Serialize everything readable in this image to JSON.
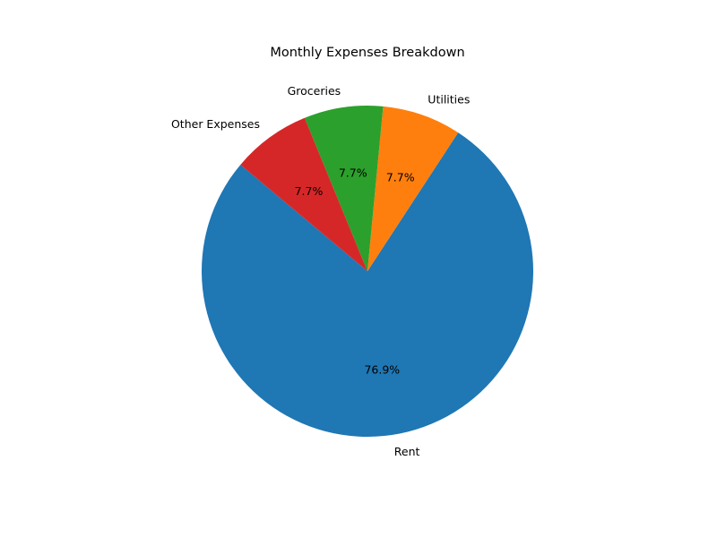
{
  "chart_data": {
    "type": "pie",
    "title": "Monthly Expenses Breakdown",
    "start_angle_deg": 140,
    "direction": "counterclockwise",
    "slices": [
      {
        "label": "Rent",
        "value": 76.9,
        "percent_label": "76.9%",
        "color": "#1f77b4"
      },
      {
        "label": "Utilities",
        "value": 7.7,
        "percent_label": "7.7%",
        "color": "#ff7f0e"
      },
      {
        "label": "Groceries",
        "value": 7.7,
        "percent_label": "7.7%",
        "color": "#2ca02c"
      },
      {
        "label": "Other Expenses",
        "value": 7.7,
        "percent_label": "7.7%",
        "color": "#d62728"
      }
    ],
    "legend": "none"
  }
}
